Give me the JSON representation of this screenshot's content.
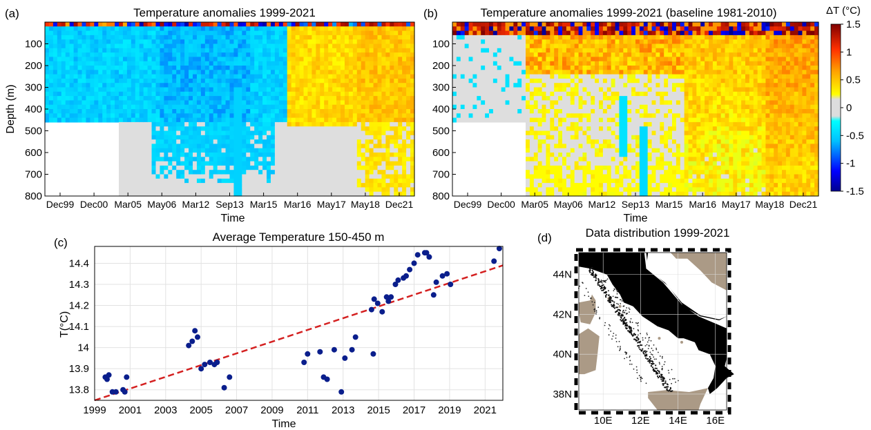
{
  "panels": {
    "a": {
      "label": "(a)",
      "title": "Temperature anomalies 1999-2021",
      "xlabel": "Time",
      "ylabel": "Depth (m)",
      "xticks": [
        "Dec99",
        "Dec00",
        "Mar05",
        "May06",
        "Mar12",
        "Sep13",
        "Mar15",
        "Mar16",
        "May17",
        "May18",
        "Dec21"
      ],
      "yticks": [
        "100",
        "200",
        "300",
        "400",
        "500",
        "600",
        "700",
        "800"
      ]
    },
    "b": {
      "label": "(b)",
      "title": "Temperature anomalies 1999-2021 (baseline 1981-2010)",
      "xlabel": "Time",
      "xticks": [
        "Dec99",
        "Dec00",
        "Mar05",
        "May06",
        "Mar12",
        "Sep13",
        "Mar15",
        "Mar16",
        "May17",
        "May18",
        "Dec21"
      ],
      "yticks": [
        "100",
        "200",
        "300",
        "400",
        "500",
        "600",
        "700",
        "800"
      ]
    },
    "colorbar": {
      "label": "ΔT (°C)",
      "ticks": [
        "1.5",
        "1",
        "0.5",
        "0",
        "-0.5",
        "-1",
        "-1.5"
      ]
    },
    "c": {
      "label": "(c)",
      "title": "Average Temperature 150-450 m",
      "xlabel": "Time",
      "ylabel": "T(°C)",
      "xticks": [
        "1999",
        "2001",
        "2003",
        "2005",
        "2007",
        "2009",
        "2011",
        "2013",
        "2015",
        "2017",
        "2019",
        "2021"
      ],
      "yticks": [
        "13.8",
        "13.9",
        "14",
        "14.1",
        "14.2",
        "14.3",
        "14.4"
      ]
    },
    "d": {
      "label": "(d)",
      "title": "Data distribution 1999-2021",
      "xticks": [
        "10E",
        "12E",
        "14E",
        "16E"
      ],
      "yticks": [
        "44N",
        "42N",
        "40N",
        "38N"
      ]
    }
  },
  "chart_data": [
    {
      "panel": "a",
      "type": "heatmap",
      "title": "Temperature anomalies 1999-2021",
      "xlabel": "Time",
      "ylabel": "Depth (m)",
      "x_categories": [
        "Dec99",
        "Dec00",
        "Mar05",
        "May06",
        "Mar12",
        "Sep13",
        "Mar15",
        "Mar16",
        "May17",
        "May18",
        "Dec21"
      ],
      "ylim": [
        800,
        0
      ],
      "clim": [
        -1.5,
        1.5
      ],
      "colormap": "jet",
      "note": "Dec99-Sep13 mostly negative anomalies (-0.3 to -0.7) in 0-450 m, grey (near 0) below; Mar15-Dec21 positive anomalies (0.2 to 0.6) throughout the column"
    },
    {
      "panel": "b",
      "type": "heatmap",
      "title": "Temperature anomalies 1999-2021 (baseline 1981-2010)",
      "xlabel": "Time",
      "x_categories": [
        "Dec99",
        "Dec00",
        "Mar05",
        "May06",
        "Mar12",
        "Sep13",
        "Mar15",
        "Mar16",
        "May17",
        "May18",
        "Dec21"
      ],
      "ylim": [
        800,
        0
      ],
      "clim": [
        -1.5,
        1.5
      ],
      "colormap": "jet",
      "note": "Surface layer strongly positive (>1), subsurface positive anomalies growing from 0.2 to 0.8 toward Dec21"
    },
    {
      "panel": "c",
      "type": "scatter",
      "title": "Average Temperature 150-450 m",
      "xlabel": "Time",
      "ylabel": "T(°C)",
      "xlim": [
        1999,
        2022
      ],
      "ylim": [
        13.75,
        14.48
      ],
      "series": [
        {
          "x": [
            1999.6,
            1999.7,
            1999.8,
            2000.0,
            2000.2,
            2000.6,
            2000.7,
            2000.8,
            2004.3,
            2004.5,
            2004.65,
            2004.8,
            2005.0,
            2005.2,
            2005.5,
            2005.75,
            2005.9,
            2006.3,
            2006.6,
            2010.8,
            2011.0,
            2011.7,
            2011.9,
            2012.1,
            2012.5,
            2012.9,
            2013.1,
            2013.5,
            2013.7,
            2014.6,
            2014.7,
            2014.75,
            2014.95,
            2015.2,
            2015.45,
            2015.55,
            2015.7,
            2015.95,
            2016.1,
            2016.4,
            2016.55,
            2016.75,
            2017.0,
            2017.2,
            2017.6,
            2017.7,
            2017.85,
            2018.1,
            2018.25,
            2018.6,
            2018.85,
            2019.05,
            2021.5,
            2021.8
          ],
          "y": [
            13.86,
            13.85,
            13.87,
            13.79,
            13.79,
            13.8,
            13.79,
            13.86,
            14.01,
            14.03,
            14.08,
            14.05,
            13.9,
            13.92,
            13.93,
            13.92,
            13.93,
            13.81,
            13.86,
            13.93,
            13.97,
            13.98,
            13.86,
            13.85,
            13.99,
            13.79,
            13.95,
            13.99,
            14.05,
            14.18,
            13.97,
            14.23,
            14.21,
            14.17,
            14.24,
            14.22,
            14.24,
            14.3,
            14.32,
            14.33,
            14.34,
            14.37,
            14.4,
            14.44,
            14.45,
            14.45,
            14.43,
            14.25,
            14.31,
            14.34,
            14.35,
            14.3,
            14.41,
            14.47
          ],
          "color": "#0a1e8c"
        }
      ],
      "trend_line": {
        "x": [
          1999,
          2022
        ],
        "y": [
          13.75,
          14.39
        ],
        "style": "dashed",
        "color": "#d42020"
      },
      "grid": true
    }
  ]
}
